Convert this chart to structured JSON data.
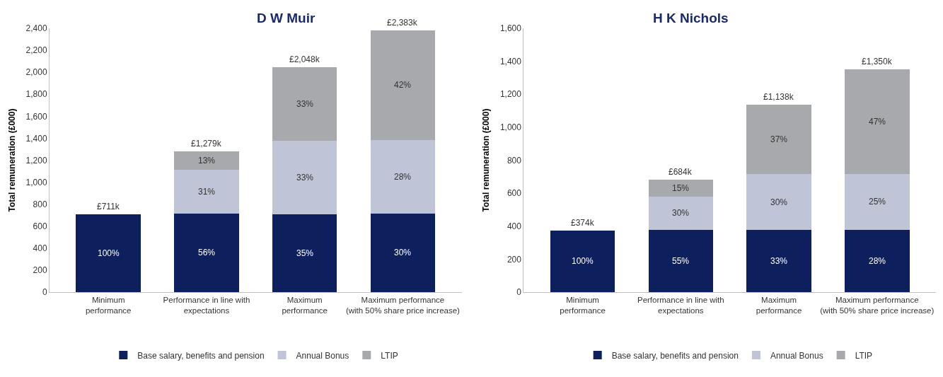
{
  "chart_data": [
    {
      "type": "bar",
      "title": "D W Muir",
      "ylabel": "Total remuneration (£000)",
      "stacked": true,
      "categories": [
        "Minimum\nperformance",
        "Performance in line with\nexpectations",
        "Maximum\nperformance",
        "Maximum performance\n(with 50% share price increase)"
      ],
      "series": [
        {
          "name": "Base salary, benefits and pension",
          "color": "#0d1f5c",
          "values": [
            711,
            716,
            710,
            715
          ]
        },
        {
          "name": "Annual Bonus",
          "color": "#bfc4d6",
          "values": [
            null,
            397,
            670,
            667
          ]
        },
        {
          "name": "LTIP",
          "color": "#a8a9ad",
          "values": [
            null,
            166,
            668,
            1001
          ]
        }
      ],
      "annotations": [
        "100%",
        "56%",
        "31%",
        "13%",
        "35%",
        "33%",
        "33%",
        "30%",
        "28%",
        "42%"
      ],
      "totals": [
        "£711k",
        "£1,279k",
        "£2,048k",
        "£2,383k"
      ],
      "ylim": [
        0,
        2400
      ],
      "yticks": [
        {
          "value": 0,
          "label": "0"
        },
        {
          "value": 200,
          "label": "200"
        },
        {
          "value": 400,
          "label": "400"
        },
        {
          "value": 600,
          "label": "600"
        },
        {
          "value": 800,
          "label": "800"
        },
        {
          "value": 1000,
          "label": "1,000"
        },
        {
          "value": 1200,
          "label": "1,200"
        },
        {
          "value": 1400,
          "label": "1,400"
        },
        {
          "value": 1600,
          "label": "1,600"
        },
        {
          "value": 1800,
          "label": "1,800"
        },
        {
          "value": 2000,
          "label": "2,000"
        },
        {
          "value": 2200,
          "label": "2,200"
        },
        {
          "value": 2400,
          "label": "2,400"
        }
      ],
      "grid": false,
      "legend": "bottom"
    },
    {
      "type": "bar",
      "title": "H K Nichols",
      "ylabel": "Total remuneration (£000)",
      "stacked": true,
      "categories": [
        "Minimum\nperformance",
        "Performance in line with\nexpectations",
        "Maximum\nperformance",
        "Maximum performance\n(with 50% share price increase)"
      ],
      "series": [
        {
          "name": "Base salary, benefits and pension",
          "color": "#0d1f5c",
          "values": [
            374,
            376,
            376,
            378
          ]
        },
        {
          "name": "Annual Bonus",
          "color": "#bfc4d6",
          "values": [
            null,
            205,
            341,
            338
          ]
        },
        {
          "name": "LTIP",
          "color": "#a8a9ad",
          "values": [
            null,
            103,
            421,
            634
          ]
        }
      ],
      "annotations": [
        "100%",
        "55%",
        "30%",
        "15%",
        "33%",
        "30%",
        "37%",
        "28%",
        "25%",
        "47%"
      ],
      "totals": [
        "£374k",
        "£684k",
        "£1,138k",
        "£1,350k"
      ],
      "ylim": [
        0,
        1600
      ],
      "yticks": [
        {
          "value": 0,
          "label": "0"
        },
        {
          "value": 200,
          "label": "200"
        },
        {
          "value": 400,
          "label": "400"
        },
        {
          "value": 600,
          "label": "600"
        },
        {
          "value": 800,
          "label": "800"
        },
        {
          "value": 1000,
          "label": "1,000"
        },
        {
          "value": 1200,
          "label": "1,200"
        },
        {
          "value": 1400,
          "label": "1,400"
        },
        {
          "value": 1600,
          "label": "1,600"
        }
      ],
      "grid": false,
      "legend": "bottom"
    }
  ]
}
